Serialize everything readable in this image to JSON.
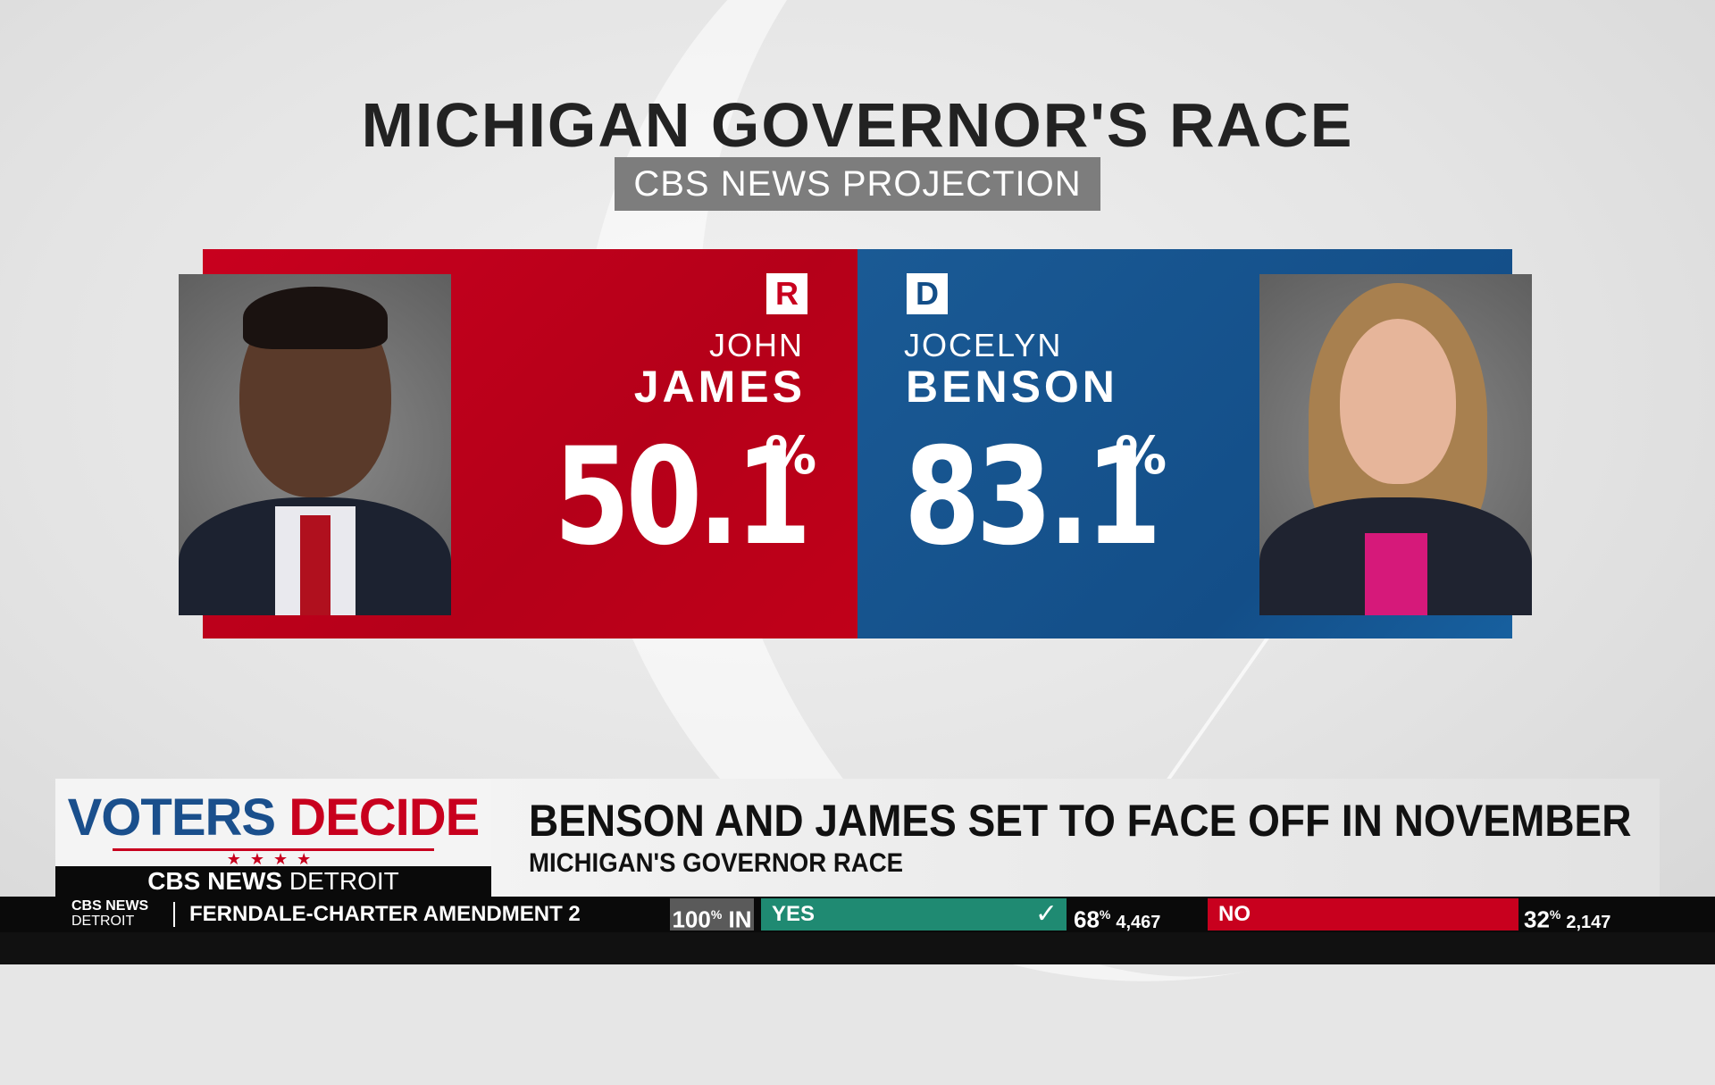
{
  "title": "MICHIGAN GOVERNOR'S RACE",
  "subtitle": "CBS NEWS PROJECTION",
  "colors": {
    "republican": "#c8001e",
    "democrat": "#134e88",
    "yes": "#1f8a72"
  },
  "candidates": [
    {
      "party": "R",
      "first": "JOHN",
      "last": "JAMES",
      "percent": "50.1",
      "percent_symbol": "%"
    },
    {
      "party": "D",
      "first": "JOCELYN",
      "last": "BENSON",
      "percent": "83.1",
      "percent_symbol": "%"
    }
  ],
  "lower_third": {
    "logo_part1": "VOTERS ",
    "logo_part2": "DECIDE",
    "stars": "★★★★",
    "brand_bold": "CBS NEWS",
    "brand_thin": " DETROIT",
    "headline": "BENSON AND JAMES SET TO FACE OFF IN NOVEMBER",
    "subhead": "MICHIGAN'S GOVERNOR RACE"
  },
  "ticker": {
    "brand_top": "CBS NEWS",
    "brand_bottom": "DETROIT",
    "label": "FERNDALE-CHARTER AMENDMENT 2",
    "reporting_value": "100",
    "reporting_symbol": "%",
    "reporting_suffix": " IN",
    "yes_label": "YES",
    "yes_icon": "check-icon",
    "yes_pct": "68",
    "yes_votes": "4,467",
    "no_label": "NO",
    "no_pct": "32",
    "no_votes": "2,147",
    "pct_symbol": "%"
  }
}
